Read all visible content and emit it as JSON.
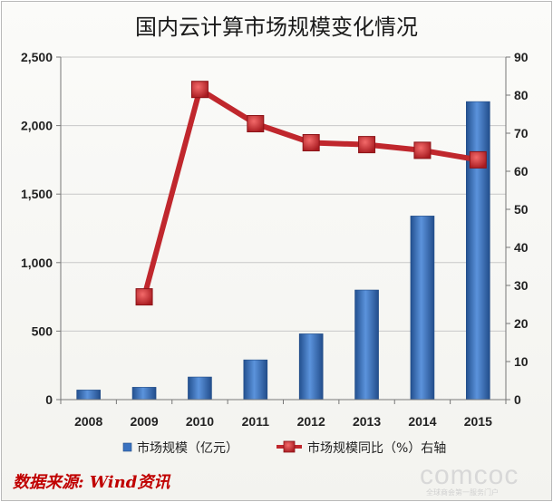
{
  "title": "国内云计算市场规模变化情况",
  "source_note": "数据来源: Wind资讯",
  "watermark": "comcoc",
  "watermark_sub": "全球商会第一服务门户",
  "colors": {
    "bar": "#3a72c0",
    "line": "#c0272d",
    "marker": "#c8282e",
    "grid": "#c8c8c8"
  },
  "chart_data": {
    "type": "bar",
    "categories": [
      "2008",
      "2009",
      "2010",
      "2011",
      "2012",
      "2013",
      "2014",
      "2015"
    ],
    "series": [
      {
        "name": "市场规模（亿元）",
        "axis": "left",
        "type": "bar",
        "values": [
          70,
          90,
          165,
          290,
          480,
          800,
          1340,
          2175
        ]
      },
      {
        "name": "市场规模同比（%）右轴",
        "axis": "right",
        "type": "line",
        "values": [
          null,
          27,
          81.5,
          72.5,
          67.5,
          67,
          65.5,
          63
        ]
      }
    ],
    "y_left": {
      "ylim": [
        0,
        2500
      ],
      "ticks": [
        "0",
        "500",
        "1,000",
        "1,500",
        "2,000",
        "2,500"
      ]
    },
    "y_right": {
      "ylim": [
        0,
        90
      ],
      "ticks": [
        "0",
        "10",
        "20",
        "30",
        "40",
        "50",
        "60",
        "70",
        "80",
        "90"
      ]
    },
    "grid": true,
    "legend_position": "bottom"
  }
}
